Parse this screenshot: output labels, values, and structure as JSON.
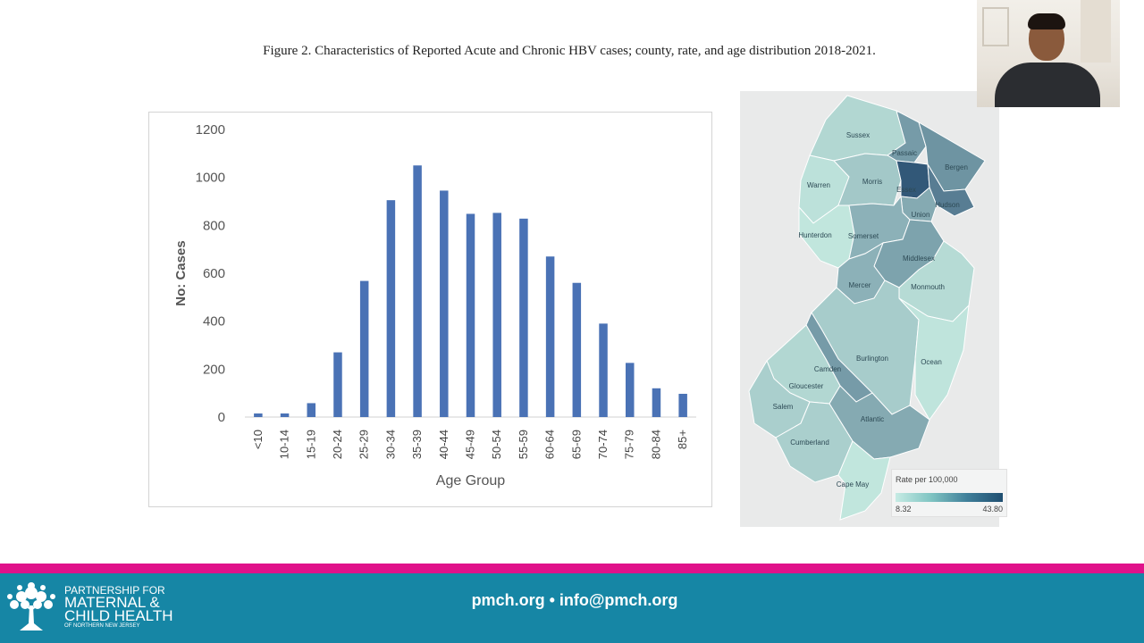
{
  "caption": "Figure 2. Characteristics of Reported Acute and Chronic HBV cases; county, rate, and age distribution 2018-2021.",
  "chart_data": {
    "type": "bar",
    "categories": [
      "<10",
      "10-14",
      "15-19",
      "20-24",
      "25-29",
      "30-34",
      "35-39",
      "40-44",
      "45-49",
      "50-54",
      "55-59",
      "60-64",
      "65-69",
      "70-74",
      "75-79",
      "80-84",
      "85+"
    ],
    "values": [
      15,
      15,
      58,
      270,
      568,
      905,
      1050,
      945,
      848,
      852,
      828,
      670,
      560,
      390,
      226,
      120,
      97
    ],
    "xlabel": "Age Group",
    "ylabel": "No: Cases",
    "ylim": [
      0,
      1200
    ],
    "yticks": [
      0,
      200,
      400,
      600,
      800,
      1000,
      1200
    ],
    "grid": false,
    "bar_color": "#4a72b5"
  },
  "map": {
    "counties": [
      {
        "name": "Sussex",
        "level": 0.15
      },
      {
        "name": "Passaic",
        "level": 0.55
      },
      {
        "name": "Bergen",
        "level": 0.6
      },
      {
        "name": "Warren",
        "level": 0.08
      },
      {
        "name": "Morris",
        "level": 0.25
      },
      {
        "name": "Essex",
        "level": 1.0
      },
      {
        "name": "Hudson",
        "level": 0.75
      },
      {
        "name": "Union",
        "level": 0.45
      },
      {
        "name": "Hunterdon",
        "level": 0.05
      },
      {
        "name": "Somerset",
        "level": 0.4
      },
      {
        "name": "Middlesex",
        "level": 0.5
      },
      {
        "name": "Mercer",
        "level": 0.4
      },
      {
        "name": "Monmouth",
        "level": 0.12
      },
      {
        "name": "Burlington",
        "level": 0.22
      },
      {
        "name": "Ocean",
        "level": 0.06
      },
      {
        "name": "Camden",
        "level": 0.55
      },
      {
        "name": "Gloucester",
        "level": 0.15
      },
      {
        "name": "Salem",
        "level": 0.2
      },
      {
        "name": "Atlantic",
        "level": 0.45
      },
      {
        "name": "Cumberland",
        "level": 0.2
      },
      {
        "name": "Cape May",
        "level": 0.05
      }
    ],
    "legend": {
      "title": "Rate per 100,000",
      "min": "8.32",
      "max": "43.80"
    }
  },
  "footer": {
    "contact": "pmch.org • info@pmch.org",
    "logo": {
      "line1": "PARTNERSHIP FOR",
      "line2": "MATERNAL &",
      "line3": "CHILD HEALTH",
      "line4": "OF NORTHERN NEW JERSEY"
    }
  }
}
